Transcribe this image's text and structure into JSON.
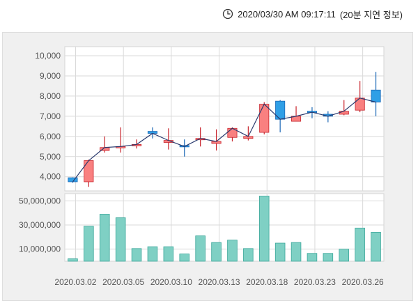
{
  "header": {
    "timestamp": "2020/03/30 AM 09:17:11",
    "delay_note": "(20분 지연 정보)",
    "clock_icon": "clock-icon"
  },
  "colors": {
    "up": "#f98080",
    "up_stroke": "#c8232b",
    "down": "#2f9fe6",
    "down_stroke": "#1a67b5",
    "close_line": "#2a3a6e",
    "volume": "#7fd0c4",
    "volume_stroke": "#3ba79a",
    "grid": "#d9d9d9"
  },
  "chart_data": [
    {
      "type": "candlestick",
      "title": "",
      "y_ticks": [
        "4,000",
        "5,000",
        "6,000",
        "7,000",
        "8,000",
        "9,000",
        "10,000"
      ],
      "ylim": [
        3300,
        10450
      ],
      "grid": true,
      "candles": [
        {
          "open": 3950,
          "close": 3750,
          "high": 3970,
          "low": 3700
        },
        {
          "open": 3750,
          "close": 4800,
          "high": 4850,
          "low": 3500
        },
        {
          "open": 5300,
          "close": 5450,
          "high": 6000,
          "low": 5200
        },
        {
          "open": 5500,
          "close": 5500,
          "high": 6450,
          "low": 5200
        },
        {
          "open": 5600,
          "close": 5600,
          "high": 5850,
          "low": 5400
        },
        {
          "open": 6250,
          "close": 6150,
          "high": 6450,
          "low": 5900
        },
        {
          "open": 5700,
          "close": 5800,
          "high": 6400,
          "low": 5350
        },
        {
          "open": 5550,
          "close": 5500,
          "high": 5850,
          "low": 5000
        },
        {
          "open": 5850,
          "close": 5900,
          "high": 6450,
          "low": 5500
        },
        {
          "open": 5650,
          "close": 5750,
          "high": 6350,
          "low": 5300
        },
        {
          "open": 5950,
          "close": 6400,
          "high": 6450,
          "low": 5750
        },
        {
          "open": 5900,
          "close": 6000,
          "high": 6500,
          "low": 5800
        },
        {
          "open": 6200,
          "close": 7600,
          "high": 7700,
          "low": 6100
        },
        {
          "open": 7750,
          "close": 6850,
          "high": 7800,
          "low": 6200
        },
        {
          "open": 6750,
          "close": 7000,
          "high": 7500,
          "low": 6750
        },
        {
          "open": 7250,
          "close": 7200,
          "high": 7450,
          "low": 6900
        },
        {
          "open": 7100,
          "close": 7000,
          "high": 7250,
          "low": 6700
        },
        {
          "open": 7100,
          "close": 7250,
          "high": 7800,
          "low": 7050
        },
        {
          "open": 7300,
          "close": 7900,
          "high": 8750,
          "low": 7200
        },
        {
          "open": 8300,
          "close": 7700,
          "high": 9200,
          "low": 7000
        }
      ]
    },
    {
      "type": "bar",
      "title": "",
      "y_ticks": [
        "10,000,000",
        "30,000,000",
        "50,000,000"
      ],
      "ylim": [
        0,
        56000000
      ],
      "grid": true,
      "values": [
        2000000,
        29000000,
        39000000,
        36000000,
        10500000,
        12000000,
        12000000,
        6000000,
        21000000,
        15500000,
        17500000,
        10500000,
        54000000,
        15000000,
        15500000,
        6500000,
        6500000,
        10000000,
        27500000,
        24000000
      ]
    }
  ],
  "x_axis": {
    "labels": [
      "2020.03.02",
      "2020.03.05",
      "2020.03.10",
      "2020.03.13",
      "2020.03.18",
      "2020.03.23",
      "2020.03.26"
    ]
  }
}
